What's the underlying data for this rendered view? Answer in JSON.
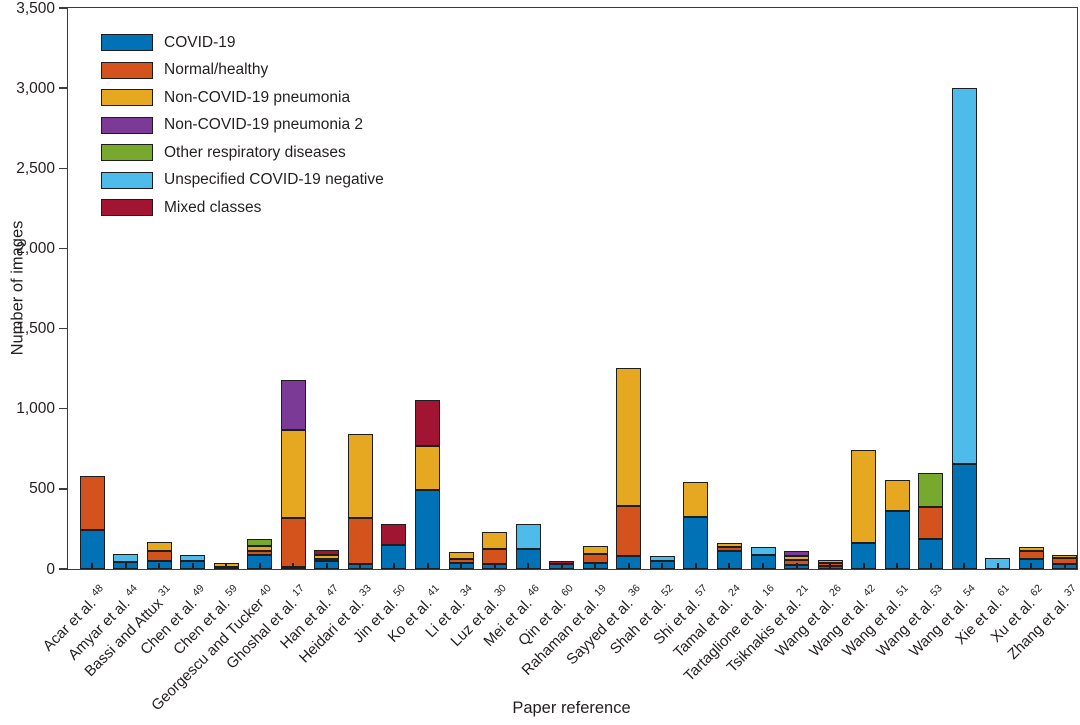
{
  "chart_data": {
    "type": "bar",
    "variant": "stacked-vertical",
    "title": "",
    "xlabel": "Paper reference",
    "ylabel": "Number of images",
    "ylim": [
      0,
      3500
    ],
    "grid": false,
    "legend_position": "top-left-inside",
    "yticks": [
      0,
      500,
      1000,
      1500,
      2000,
      2500,
      3000,
      3500
    ],
    "ytick_labels": [
      "0",
      "500",
      "1,000",
      "1,500",
      "2,000",
      "2,500",
      "3,000",
      "3,500"
    ],
    "stack_order": [
      "covid",
      "normal",
      "pneumonia",
      "pneumonia2",
      "other",
      "unspecified",
      "mixed"
    ],
    "colors": {
      "covid": "#0072b5",
      "normal": "#d4531c",
      "pneumonia": "#e7a821",
      "pneumonia2": "#7c3a97",
      "other": "#76a92e",
      "unspecified": "#4dbcea",
      "mixed": "#a21532"
    },
    "axis_color": "#3c3c3e",
    "segment_border_color": "#1e1e20",
    "legend": [
      {
        "key": "covid",
        "label": "COVID-19"
      },
      {
        "key": "normal",
        "label": "Normal/healthy"
      },
      {
        "key": "pneumonia",
        "label": "Non-COVID-19 pneumonia"
      },
      {
        "key": "pneumonia2",
        "label": "Non-COVID-19 pneumonia 2"
      },
      {
        "key": "other",
        "label": "Other respiratory diseases"
      },
      {
        "key": "unspecified",
        "label": "Unspecified COVID-19 negative"
      },
      {
        "key": "mixed",
        "label": "Mixed classes"
      }
    ],
    "bars": [
      {
        "label": "Acar et al.",
        "ref": "48",
        "segments": {
          "covid": 245,
          "normal": 335
        }
      },
      {
        "label": "Amyar et al.",
        "ref": "44",
        "segments": {
          "covid": 45,
          "unspecified": 50
        }
      },
      {
        "label": "Bassi and Attux",
        "ref": "31",
        "segments": {
          "covid": 50,
          "normal": 65,
          "pneumonia": 55
        }
      },
      {
        "label": "Chen et al.",
        "ref": "49",
        "segments": {
          "covid": 50,
          "unspecified": 35
        }
      },
      {
        "label": "Chen et al.",
        "ref": "59",
        "segments": {
          "covid": 15,
          "pneumonia": 20
        }
      },
      {
        "label": "Georgescu  and Tucker",
        "ref": "40",
        "segments": {
          "covid": 90,
          "normal": 25,
          "pneumonia": 30,
          "other": 45
        }
      },
      {
        "label": "Ghoshal et al.",
        "ref": "17",
        "segments": {
          "covid": 15,
          "normal": 305,
          "pneumonia": 550,
          "pneumonia2": 310
        }
      },
      {
        "label": "Han et al.",
        "ref": "47",
        "segments": {
          "covid": 50,
          "normal": 15,
          "pneumonia": 25,
          "mixed": 30
        }
      },
      {
        "label": "Heidari et al.",
        "ref": "33",
        "segments": {
          "covid": 30,
          "normal": 290,
          "pneumonia": 520
        }
      },
      {
        "label": "Jin et al.",
        "ref": "50",
        "segments": {
          "covid": 150,
          "mixed": 130
        }
      },
      {
        "label": "Ko et al.",
        "ref": "41",
        "segments": {
          "covid": 495,
          "pneumonia": 270,
          "mixed": 290
        }
      },
      {
        "label": "Li et al.",
        "ref": "34",
        "segments": {
          "covid": 40,
          "normal": 25,
          "pneumonia": 40
        }
      },
      {
        "label": "Luz et al.",
        "ref": "30",
        "segments": {
          "covid": 30,
          "normal": 95,
          "pneumonia": 105
        }
      },
      {
        "label": "Mei et al.",
        "ref": "46",
        "segments": {
          "covid": 125,
          "unspecified": 155
        }
      },
      {
        "label": "Qin et al.",
        "ref": "60",
        "segments": {
          "covid": 30,
          "mixed": 20
        }
      },
      {
        "label": "Rahaman et al.",
        "ref": "19",
        "segments": {
          "covid": 40,
          "normal": 55,
          "pneumonia": 50
        }
      },
      {
        "label": "Sayyed et al.",
        "ref": "36",
        "segments": {
          "covid": 80,
          "normal": 315,
          "pneumonia": 860
        }
      },
      {
        "label": "Shah et al.",
        "ref": "52",
        "segments": {
          "covid": 50,
          "unspecified": 30
        }
      },
      {
        "label": "Shi et al.",
        "ref": "57",
        "segments": {
          "covid": 325,
          "pneumonia": 215
        }
      },
      {
        "label": "Tamal et al.",
        "ref": "24",
        "segments": {
          "covid": 110,
          "normal": 30,
          "pneumonia": 25
        }
      },
      {
        "label": "Tartaglione et al.",
        "ref": "16",
        "segments": {
          "covid": 90,
          "unspecified": 50
        }
      },
      {
        "label": "Tsiknakis et al.",
        "ref": "21",
        "segments": {
          "covid": 25,
          "normal": 30,
          "pneumonia": 25,
          "pneumonia2": 30
        }
      },
      {
        "label": "Wang et al.",
        "ref": "26",
        "segments": {
          "covid": 20,
          "normal": 20,
          "pneumonia": 15
        }
      },
      {
        "label": "Wang et al.",
        "ref": "42",
        "segments": {
          "covid": 160,
          "pneumonia": 580
        }
      },
      {
        "label": "Wang et al.",
        "ref": "51",
        "segments": {
          "covid": 360,
          "pneumonia": 195
        }
      },
      {
        "label": "Wang et al.",
        "ref": "53",
        "segments": {
          "covid": 190,
          "normal": 200,
          "other": 210
        }
      },
      {
        "label": "Wang et al.",
        "ref": "54",
        "segments": {
          "covid": 655,
          "unspecified": 2345
        }
      },
      {
        "label": "Xie et al.",
        "ref": "61",
        "segments": {
          "unspecified": 70
        }
      },
      {
        "label": "Xu et al.",
        "ref": "62",
        "segments": {
          "covid": 60,
          "normal": 50,
          "pneumonia": 25
        }
      },
      {
        "label": "Zhang et al.",
        "ref": "37",
        "segments": {
          "covid": 30,
          "normal": 40,
          "pneumonia": 15
        }
      }
    ]
  }
}
